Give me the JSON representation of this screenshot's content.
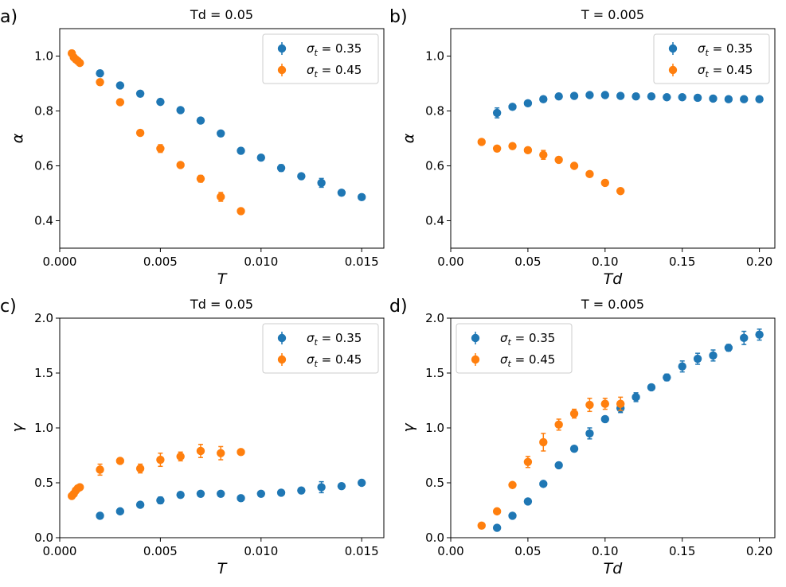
{
  "colors": {
    "blue": "#1f77b4",
    "orange": "#ff7f0e"
  },
  "chart_data": [
    {
      "type": "scatter",
      "panel_label": "a)",
      "title": "Td = 0.05",
      "xlabel": "T",
      "ylabel": "α",
      "xlim": [
        0,
        0.0161
      ],
      "ylim": [
        0.3,
        1.1
      ],
      "xticks": [
        0.0,
        0.005,
        0.01,
        0.015
      ],
      "xtick_labels": [
        "0.000",
        "0.005",
        "0.010",
        "0.015"
      ],
      "yticks": [
        0.4,
        0.6,
        0.8,
        1.0
      ],
      "ytick_labels": [
        "0.4",
        "0.6",
        "0.8",
        "1.0"
      ],
      "legend_position": "top-right",
      "series": [
        {
          "name": "σt = 0.35",
          "legend_sym": "σ",
          "legend_sub": "t",
          "legend_val": " = 0.35",
          "color": "#1f77b4",
          "x": [
            0.002,
            0.003,
            0.004,
            0.005,
            0.006,
            0.007,
            0.008,
            0.009,
            0.01,
            0.011,
            0.012,
            0.013,
            0.014,
            0.015
          ],
          "y": [
            0.937,
            0.893,
            0.863,
            0.833,
            0.803,
            0.765,
            0.718,
            0.655,
            0.63,
            0.592,
            0.562,
            0.538,
            0.502,
            0.486
          ],
          "err": [
            0.006,
            0.006,
            0.006,
            0.006,
            0.006,
            0.008,
            0.008,
            0.01,
            0.008,
            0.012,
            0.008,
            0.016,
            0.006,
            0.006
          ]
        },
        {
          "name": "σt = 0.45",
          "legend_sym": "σ",
          "legend_sub": "t",
          "legend_val": " = 0.45",
          "color": "#ff7f0e",
          "x": [
            0.0006,
            0.0007,
            0.0008,
            0.0009,
            0.001,
            0.002,
            0.003,
            0.004,
            0.005,
            0.006,
            0.007,
            0.008,
            0.009
          ],
          "y": [
            1.01,
            0.995,
            0.988,
            0.982,
            0.975,
            0.905,
            0.832,
            0.72,
            0.663,
            0.603,
            0.553,
            0.487,
            0.435
          ],
          "err": [
            0.006,
            0.006,
            0.006,
            0.006,
            0.006,
            0.006,
            0.006,
            0.008,
            0.014,
            0.008,
            0.012,
            0.016,
            0.006
          ]
        }
      ]
    },
    {
      "type": "scatter",
      "panel_label": "b)",
      "title": "T = 0.005",
      "xlabel": "Td",
      "ylabel": "α",
      "xlim": [
        0,
        0.21
      ],
      "ylim": [
        0.3,
        1.1
      ],
      "xticks": [
        0.0,
        0.05,
        0.1,
        0.15,
        0.2
      ],
      "xtick_labels": [
        "0.00",
        "0.05",
        "0.10",
        "0.15",
        "0.20"
      ],
      "yticks": [
        0.4,
        0.6,
        0.8,
        1.0
      ],
      "ytick_labels": [
        "0.4",
        "0.6",
        "0.8",
        "1.0"
      ],
      "legend_position": "top-right",
      "series": [
        {
          "name": "σt = 0.35",
          "legend_sym": "σ",
          "legend_sub": "t",
          "legend_val": " = 0.35",
          "color": "#1f77b4",
          "x": [
            0.03,
            0.04,
            0.05,
            0.06,
            0.07,
            0.08,
            0.09,
            0.1,
            0.11,
            0.12,
            0.13,
            0.14,
            0.15,
            0.16,
            0.17,
            0.18,
            0.19,
            0.2
          ],
          "y": [
            0.793,
            0.815,
            0.828,
            0.843,
            0.853,
            0.855,
            0.858,
            0.858,
            0.855,
            0.853,
            0.853,
            0.85,
            0.85,
            0.848,
            0.845,
            0.843,
            0.843,
            0.843
          ],
          "err": [
            0.018,
            0.006,
            0.006,
            0.006,
            0.006,
            0.006,
            0.006,
            0.006,
            0.006,
            0.006,
            0.006,
            0.006,
            0.006,
            0.006,
            0.006,
            0.006,
            0.006,
            0.006
          ]
        },
        {
          "name": "σt = 0.45",
          "legend_sym": "σ",
          "legend_sub": "t",
          "legend_val": " = 0.45",
          "color": "#ff7f0e",
          "x": [
            0.02,
            0.03,
            0.04,
            0.05,
            0.06,
            0.07,
            0.08,
            0.09,
            0.1,
            0.11
          ],
          "y": [
            0.687,
            0.663,
            0.672,
            0.657,
            0.64,
            0.622,
            0.6,
            0.57,
            0.538,
            0.508
          ],
          "err": [
            0.006,
            0.006,
            0.006,
            0.006,
            0.016,
            0.006,
            0.006,
            0.008,
            0.008,
            0.01
          ]
        }
      ]
    },
    {
      "type": "scatter",
      "panel_label": "c)",
      "title": "Td = 0.05",
      "xlabel": "T",
      "ylabel": "γ",
      "xlim": [
        0,
        0.0161
      ],
      "ylim": [
        0,
        2.0
      ],
      "xticks": [
        0.0,
        0.005,
        0.01,
        0.015
      ],
      "xtick_labels": [
        "0.000",
        "0.005",
        "0.010",
        "0.015"
      ],
      "yticks": [
        0.0,
        0.5,
        1.0,
        1.5,
        2.0
      ],
      "ytick_labels": [
        "0.0",
        "0.5",
        "1.0",
        "1.5",
        "2.0"
      ],
      "legend_position": "top-right",
      "series": [
        {
          "name": "σt = 0.35",
          "legend_sym": "σ",
          "legend_sub": "t",
          "legend_val": " = 0.35",
          "color": "#1f77b4",
          "x": [
            0.002,
            0.003,
            0.004,
            0.005,
            0.006,
            0.007,
            0.008,
            0.009,
            0.01,
            0.011,
            0.012,
            0.013,
            0.014,
            0.015
          ],
          "y": [
            0.2,
            0.24,
            0.3,
            0.34,
            0.39,
            0.4,
            0.4,
            0.36,
            0.4,
            0.41,
            0.43,
            0.46,
            0.47,
            0.5
          ],
          "err": [
            0.02,
            0.02,
            0.02,
            0.03,
            0.02,
            0.02,
            0.02,
            0.02,
            0.02,
            0.02,
            0.02,
            0.05,
            0.02,
            0.02
          ]
        },
        {
          "name": "σt = 0.45",
          "legend_sym": "σ",
          "legend_sub": "t",
          "legend_val": " = 0.45",
          "color": "#ff7f0e",
          "x": [
            0.0006,
            0.0007,
            0.0008,
            0.0009,
            0.001,
            0.002,
            0.003,
            0.004,
            0.005,
            0.006,
            0.007,
            0.008,
            0.009
          ],
          "y": [
            0.38,
            0.4,
            0.43,
            0.45,
            0.46,
            0.62,
            0.7,
            0.63,
            0.71,
            0.74,
            0.79,
            0.77,
            0.78
          ],
          "err": [
            0.02,
            0.02,
            0.02,
            0.02,
            0.02,
            0.05,
            0.02,
            0.04,
            0.06,
            0.04,
            0.06,
            0.06,
            0.02
          ]
        }
      ]
    },
    {
      "type": "scatter",
      "panel_label": "d)",
      "title": "T = 0.005",
      "xlabel": "Td",
      "ylabel": "γ",
      "xlim": [
        0,
        0.21
      ],
      "ylim": [
        0,
        2.0
      ],
      "xticks": [
        0.0,
        0.05,
        0.1,
        0.15,
        0.2
      ],
      "xtick_labels": [
        "0.00",
        "0.05",
        "0.10",
        "0.15",
        "0.20"
      ],
      "yticks": [
        0.0,
        0.5,
        1.0,
        1.5,
        2.0
      ],
      "ytick_labels": [
        "0.0",
        "0.5",
        "1.0",
        "1.5",
        "2.0"
      ],
      "legend_position": "top-left",
      "series": [
        {
          "name": "σt = 0.35",
          "legend_sym": "σ",
          "legend_sub": "t",
          "legend_val": " = 0.35",
          "color": "#1f77b4",
          "x": [
            0.03,
            0.04,
            0.05,
            0.06,
            0.07,
            0.08,
            0.09,
            0.1,
            0.11,
            0.12,
            0.13,
            0.14,
            0.15,
            0.16,
            0.17,
            0.18,
            0.19,
            0.2
          ],
          "y": [
            0.09,
            0.2,
            0.33,
            0.49,
            0.66,
            0.81,
            0.95,
            1.08,
            1.18,
            1.28,
            1.37,
            1.46,
            1.56,
            1.63,
            1.66,
            1.73,
            1.82,
            1.85
          ],
          "err": [
            0.02,
            0.02,
            0.02,
            0.02,
            0.02,
            0.02,
            0.05,
            0.02,
            0.04,
            0.04,
            0.02,
            0.03,
            0.05,
            0.05,
            0.05,
            0.03,
            0.06,
            0.05
          ]
        },
        {
          "name": "σt = 0.45",
          "legend_sym": "σ",
          "legend_sub": "t",
          "legend_val": " = 0.45",
          "color": "#ff7f0e",
          "x": [
            0.02,
            0.03,
            0.04,
            0.05,
            0.06,
            0.07,
            0.08,
            0.09,
            0.1,
            0.11
          ],
          "y": [
            0.11,
            0.24,
            0.48,
            0.69,
            0.87,
            1.03,
            1.13,
            1.21,
            1.22,
            1.22
          ],
          "err": [
            0.02,
            0.02,
            0.02,
            0.05,
            0.08,
            0.05,
            0.04,
            0.06,
            0.05,
            0.06
          ]
        }
      ]
    }
  ]
}
